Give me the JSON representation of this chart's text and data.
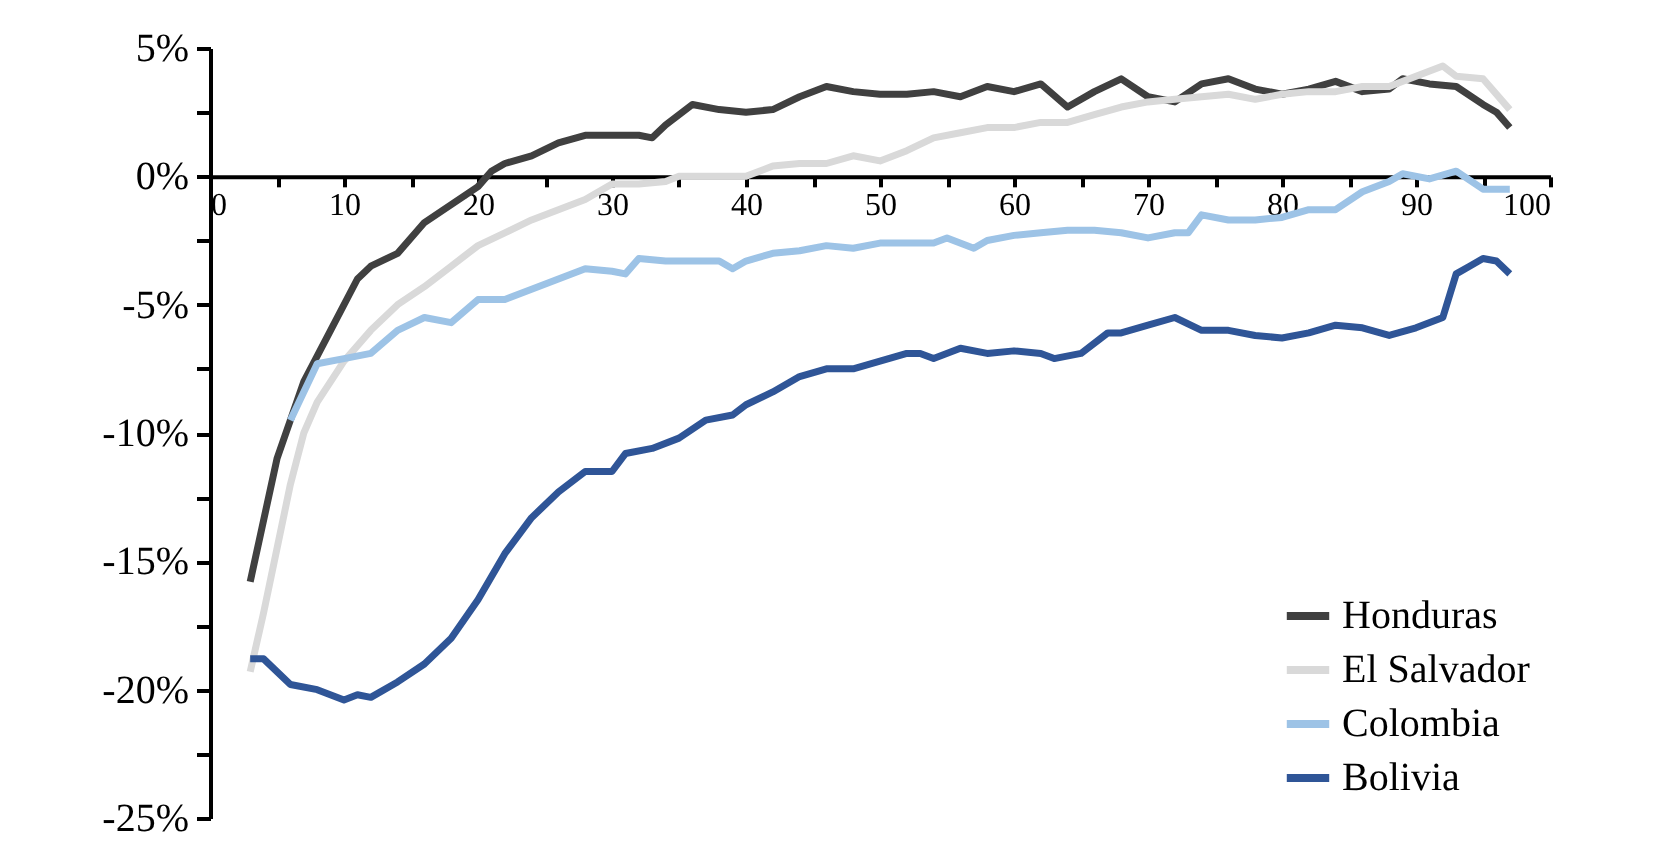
{
  "chart_data": {
    "type": "line",
    "xlim": [
      0,
      100
    ],
    "xticks": [
      0,
      {
        "value": 5,
        "label": null
      },
      10,
      {
        "value": 15,
        "label": null
      },
      20,
      {
        "value": 25,
        "label": null
      },
      30,
      {
        "value": 35,
        "label": null
      },
      40,
      {
        "value": 45,
        "label": null
      },
      50,
      {
        "value": 55,
        "label": null
      },
      60,
      {
        "value": 65,
        "label": null
      },
      70,
      {
        "value": 75,
        "label": null
      },
      80,
      {
        "value": 85,
        "label": null
      },
      90,
      {
        "value": 95,
        "label": null
      },
      100
    ],
    "ylim": [
      -25,
      5
    ],
    "yticks": [
      {
        "value": -25,
        "label": "-25%"
      },
      {
        "value": -22.5,
        "label": null
      },
      {
        "value": -20,
        "label": "-20%"
      },
      {
        "value": -17.5,
        "label": null
      },
      {
        "value": -15,
        "label": "-15%"
      },
      {
        "value": -12.5,
        "label": null
      },
      {
        "value": -10,
        "label": "-10%"
      },
      {
        "value": -7.5,
        "label": null
      },
      {
        "value": -5,
        "label": "-5%"
      },
      {
        "value": -2.5,
        "label": null
      },
      {
        "value": 0,
        "label": "0%"
      },
      {
        "value": 2.5,
        "label": null
      },
      {
        "value": 5,
        "label": "5%"
      }
    ],
    "legend": "bottom right",
    "line_style": "solid",
    "series": [
      {
        "name": "Honduras",
        "color": "#404040",
        "x": [
          3,
          5,
          7,
          9,
          11,
          12,
          14,
          16,
          18,
          20,
          21,
          22,
          24,
          26,
          28,
          30,
          32,
          33,
          34,
          36,
          38,
          40,
          42,
          44,
          46,
          48,
          50,
          52,
          54,
          56,
          58,
          60,
          62,
          64,
          66,
          68,
          70,
          72,
          74,
          76,
          78,
          80,
          82,
          84,
          86,
          88,
          89,
          91,
          93,
          95,
          96,
          97
        ],
        "values": [
          -15.8,
          -11,
          -8,
          -6,
          -4,
          -3.5,
          -3,
          -1.8,
          -1.1,
          -0.4,
          0.2,
          0.5,
          0.8,
          1.3,
          1.6,
          1.6,
          1.6,
          1.5,
          2,
          2.8,
          2.6,
          2.5,
          2.6,
          3.1,
          3.5,
          3.3,
          3.2,
          3.2,
          3.3,
          3.1,
          3.5,
          3.3,
          3.6,
          2.7,
          3.3,
          3.8,
          3.1,
          2.9,
          3.6,
          3.8,
          3.4,
          3.2,
          3.4,
          3.7,
          3.3,
          3.4,
          3.8,
          3.6,
          3.5,
          2.8,
          2.5,
          1.9
        ]
      },
      {
        "name": "El Salvador",
        "color": "#d9d9d9",
        "x": [
          3,
          4,
          5,
          6,
          7,
          8,
          10,
          12,
          14,
          16,
          18,
          20,
          22,
          24,
          26,
          28,
          30,
          32,
          34,
          35,
          38,
          40,
          42,
          44,
          46,
          48,
          50,
          52,
          54,
          56,
          58,
          60,
          62,
          64,
          66,
          68,
          70,
          72,
          74,
          76,
          78,
          80,
          82,
          84,
          86,
          88,
          90,
          92,
          93,
          95,
          97
        ],
        "values": [
          -19.3,
          -17,
          -14.5,
          -12,
          -10,
          -8.8,
          -7.2,
          -6,
          -5,
          -4.3,
          -3.5,
          -2.7,
          -2.2,
          -1.7,
          -1.3,
          -0.9,
          -0.3,
          -0.3,
          -0.2,
          0,
          0,
          0,
          0.4,
          0.5,
          0.5,
          0.8,
          0.6,
          1,
          1.5,
          1.7,
          1.9,
          1.9,
          2.1,
          2.1,
          2.4,
          2.7,
          2.9,
          3,
          3.1,
          3.2,
          3,
          3.2,
          3.3,
          3.3,
          3.5,
          3.5,
          3.9,
          4.3,
          3.9,
          3.8,
          2.6
        ]
      },
      {
        "name": "Colombia",
        "color": "#9dc3e6",
        "x": [
          6,
          8,
          10,
          12,
          14,
          16,
          18,
          20,
          22,
          24,
          26,
          28,
          30,
          31,
          32,
          34,
          36,
          38,
          39,
          40,
          42,
          44,
          46,
          48,
          50,
          52,
          54,
          55,
          57,
          58,
          60,
          62,
          64,
          66,
          68,
          70,
          72,
          73,
          74,
          76,
          78,
          80,
          82,
          84,
          86,
          88,
          89,
          91,
          93,
          95,
          97
        ],
        "values": [
          -9.5,
          -7.3,
          -7.1,
          -6.9,
          -6,
          -5.5,
          -5.7,
          -4.8,
          -4.8,
          -4.4,
          -4,
          -3.6,
          -3.7,
          -3.8,
          -3.2,
          -3.3,
          -3.3,
          -3.3,
          -3.6,
          -3.3,
          -3,
          -2.9,
          -2.7,
          -2.8,
          -2.6,
          -2.6,
          -2.6,
          -2.4,
          -2.8,
          -2.5,
          -2.3,
          -2.2,
          -2.1,
          -2.1,
          -2.2,
          -2.4,
          -2.2,
          -2.2,
          -1.5,
          -1.7,
          -1.7,
          -1.6,
          -1.3,
          -1.3,
          -0.6,
          -0.2,
          0.1,
          -0.1,
          0.2,
          -0.5,
          -0.5
        ]
      },
      {
        "name": "Bolivia",
        "color": "#2f5597",
        "x": [
          3,
          4,
          6,
          8,
          10,
          11,
          12,
          14,
          16,
          18,
          20,
          22,
          24,
          26,
          28,
          30,
          31,
          33,
          35,
          37,
          39,
          40,
          42,
          44,
          46,
          48,
          50,
          52,
          53,
          54,
          56,
          58,
          60,
          62,
          63,
          65,
          67,
          68,
          70,
          72,
          74,
          76,
          78,
          80,
          82,
          84,
          86,
          88,
          90,
          92,
          93,
          94,
          95,
          96,
          97
        ],
        "values": [
          -18.8,
          -18.8,
          -19.8,
          -20,
          -20.4,
          -20.2,
          -20.3,
          -19.7,
          -19,
          -18,
          -16.5,
          -14.7,
          -13.3,
          -12.3,
          -11.5,
          -11.5,
          -10.8,
          -10.6,
          -10.2,
          -9.5,
          -9.3,
          -8.9,
          -8.4,
          -7.8,
          -7.5,
          -7.5,
          -7.2,
          -6.9,
          -6.9,
          -7.1,
          -6.7,
          -6.9,
          -6.8,
          -6.9,
          -7.1,
          -6.9,
          -6.1,
          -6.1,
          -5.8,
          -5.5,
          -6,
          -6,
          -6.2,
          -6.3,
          -6.1,
          -5.8,
          -5.9,
          -6.2,
          -5.9,
          -5.5,
          -3.8,
          -3.5,
          -3.2,
          -3.3,
          -3.8
        ]
      }
    ]
  }
}
